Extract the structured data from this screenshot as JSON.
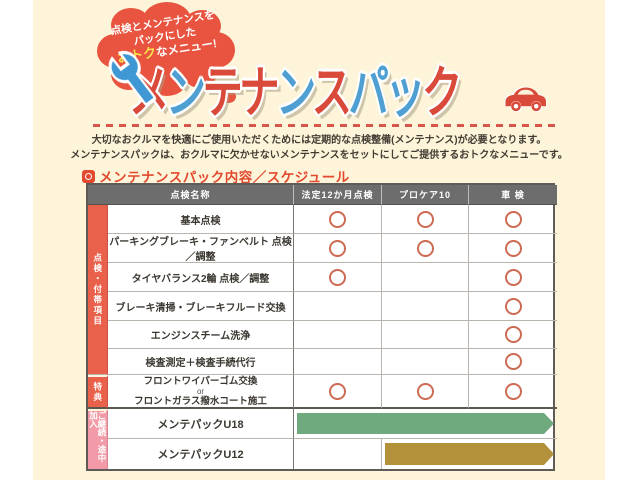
{
  "badge": {
    "line1": "点検とメンテナンスを",
    "line2": "パックにした",
    "line3_highlight": "おトク",
    "line3_rest": "なメニュー!"
  },
  "title": {
    "chars": [
      {
        "ch": "メ",
        "c": "#d94a3a"
      },
      {
        "ch": "ン",
        "c": "#4f9fd3"
      },
      {
        "ch": "テ",
        "c": "#d94a3a"
      },
      {
        "ch": "ナ",
        "c": "#d94a3a"
      },
      {
        "ch": "ン",
        "c": "#4f9fd3"
      },
      {
        "ch": "ス",
        "c": "#d94a3a"
      },
      {
        "ch": "パ",
        "c": "#4f9fd3"
      },
      {
        "ch": "ッ",
        "c": "#4f9fd3"
      },
      {
        "ch": "ク",
        "c": "#d94a3a"
      }
    ]
  },
  "intro": {
    "line1": "大切なおクルマを快適にご使用いただくためには定期的な点検整備(メンテナンス)が必要となります。",
    "line2": "メンテナンスパックは、おクルマに欠かせないメンテナンスをセットにしてご提供するおトクなメニューです。"
  },
  "section": {
    "heading": "メンテナンスパック内容／スケジュール"
  },
  "table": {
    "headers": [
      "点検名称",
      "法定12か月点検",
      "プロケア10",
      "車 検"
    ],
    "row_groups": [
      {
        "label": "点検・付帯項目",
        "rows": [
          {
            "name": "基本点検",
            "marks": [
              true,
              true,
              true
            ]
          },
          {
            "name": "パーキングブレーキ・ファンベルト 点検／調整",
            "marks": [
              true,
              true,
              true
            ]
          },
          {
            "name": "タイヤバランス2輪 点検／調整",
            "marks": [
              true,
              false,
              true
            ]
          },
          {
            "name": "ブレーキ清掃・ブレーキフルード交換",
            "marks": [
              false,
              false,
              true
            ]
          },
          {
            "name": "エンジンスチーム洗浄",
            "marks": [
              false,
              false,
              true
            ]
          },
          {
            "name": "検査測定＋検査手続代行",
            "marks": [
              false,
              false,
              true
            ]
          }
        ]
      },
      {
        "label": "特典",
        "rows": [
          {
            "name_lines": [
              "フロントワイパーゴム交換",
              "or",
              "フロントガラス撥水コート施工"
            ],
            "marks": [
              true,
              true,
              true
            ]
          }
        ]
      },
      {
        "label": "ご継続・途中加入",
        "rows": [
          {
            "name": "メンテパックU18",
            "bar": "full"
          },
          {
            "name": "メンテパックU12",
            "bar": "partial"
          }
        ]
      }
    ]
  },
  "colors": {
    "background": "#fdf4d9",
    "badge_red": "#e8543f",
    "title_red": "#d94a3a",
    "title_blue": "#4f9fd3",
    "header_bg": "#6d6d6d",
    "label_red": "#e9614b",
    "label_pink": "#f29aa7",
    "circle": "#cc6a54",
    "bar_green": "#6fa97e",
    "bar_gold": "#b3913a",
    "heading_red": "#e2492e",
    "dash_red": "#d6564a"
  }
}
